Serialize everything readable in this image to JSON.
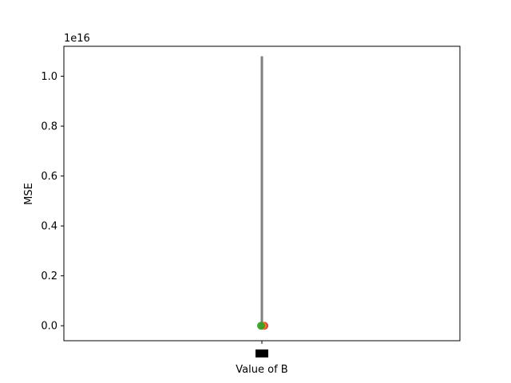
{
  "chart_data": {
    "type": "scatter",
    "title": "",
    "xlabel": "Value of B",
    "ylabel": "MSE",
    "y_offset_label": "1e16",
    "ylim": [
      -0.06,
      1.12
    ],
    "y_ticks": [
      0.0,
      0.2,
      0.4,
      0.6,
      0.8,
      1.0
    ],
    "y_tick_labels": [
      "0.0",
      "0.2",
      "0.4",
      "0.6",
      "0.8",
      "1.0"
    ],
    "x_categories": [
      ""
    ],
    "grid": false,
    "error_bar": {
      "x_index": 0,
      "low": 0.0,
      "high": 1.08,
      "color": "#808080"
    },
    "points": [
      {
        "x_index": 0,
        "y": 0.0,
        "color": "#d62728"
      },
      {
        "x_index": 0,
        "y": 0.0,
        "color": "#ff7f0e"
      },
      {
        "x_index": 0,
        "y": 0.0,
        "color": "#2ca02c"
      }
    ]
  }
}
